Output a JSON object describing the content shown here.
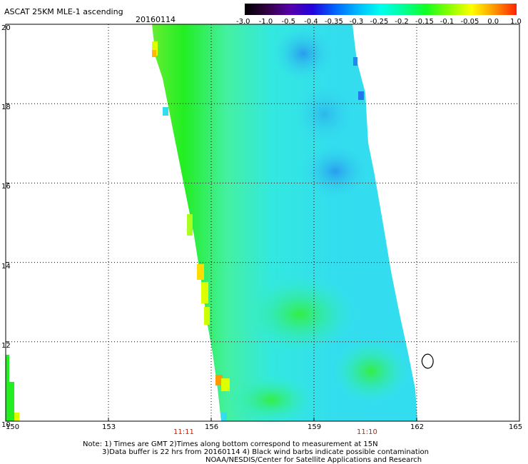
{
  "header": {
    "title": "ASCAT 25KM MLE-1 ascending",
    "date": "20160114"
  },
  "colorbar": {
    "labels": [
      "-3.0",
      "-1.0",
      "-0.5",
      "-0.4",
      "-0.35",
      "-0.3",
      "-0.25",
      "-0.2",
      "-0.15",
      "-0.1",
      "-0.05",
      "0.0",
      "1.0"
    ],
    "colors": [
      "#1a0033",
      "#4b0099",
      "#2200cc",
      "#0044ff",
      "#0099ff",
      "#00ddff",
      "#00ffcc",
      "#00ff66",
      "#33ff00",
      "#99ff00",
      "#ffff00",
      "#ffaa00",
      "#ff2200"
    ]
  },
  "map": {
    "lon_ticks": [
      "150",
      "153",
      "156",
      "159",
      "162",
      "165"
    ],
    "lat_ticks": [
      "20",
      "18",
      "16",
      "14",
      "12",
      "10"
    ],
    "lon_range": [
      150,
      165
    ],
    "lat_range": [
      10,
      20
    ],
    "swath_colors": {
      "edge_yellow": "#ddff00",
      "green": "#22ee22",
      "light_green": "#44f088",
      "cyan": "#22eecc",
      "light_blue": "#33ddee",
      "blue": "#2299ee",
      "orange": "#ffaa00"
    }
  },
  "times": {
    "left": "11:11",
    "right": "11:10"
  },
  "notes": {
    "line1": "Note: 1) Times are GMT 2)Times along bottom correspond to measurement at 15N",
    "line2": "3)Data buffer is 22 hrs from 20160114 4) Black wind barbs indicate possible contamination",
    "line3": "NOAA/NESDIS/Center for Satellite Applications and Research"
  }
}
